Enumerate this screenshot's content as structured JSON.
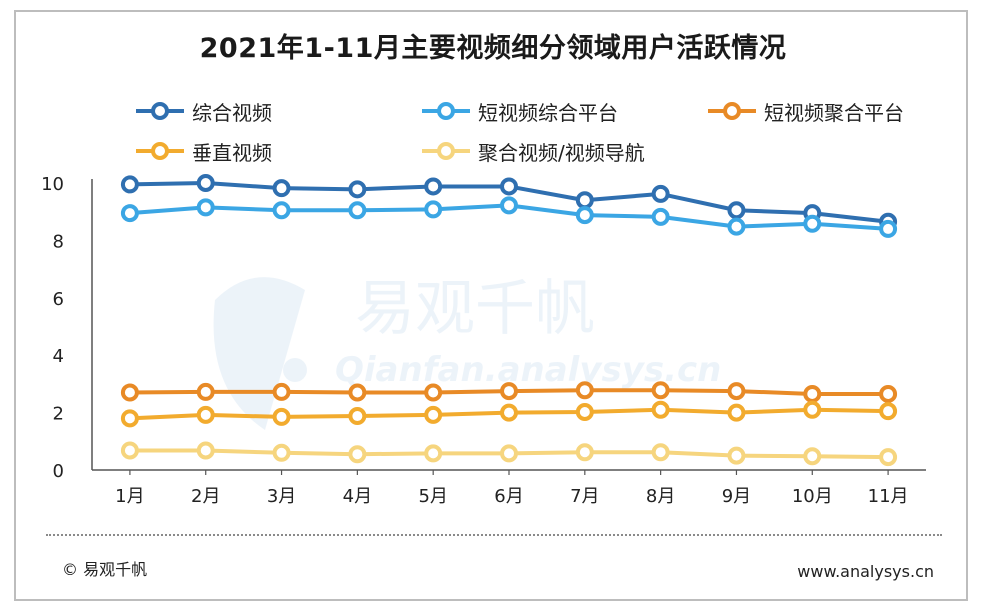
{
  "watermark": {
    "brand_cn": "易观千帆",
    "brand_url": "Qianfan.analysys.cn"
  },
  "footer": {
    "copyright": "© 易观千帆",
    "website": "www.analysys.cn"
  },
  "chart_data": {
    "type": "line",
    "title": "2021年1-11月主要视频细分领域用户活跃情况",
    "xlabel": "",
    "ylabel": "",
    "ylim": [
      0,
      10
    ],
    "yticks": [
      "0",
      "2",
      "4",
      "6",
      "8",
      "10"
    ],
    "categories": [
      "1月",
      "2月",
      "3月",
      "4月",
      "5月",
      "6月",
      "7月",
      "8月",
      "9月",
      "10月",
      "11月"
    ],
    "legend_position": "top",
    "grid": false,
    "series": [
      {
        "name": "综合视频",
        "color": "#2f6fb0",
        "values": [
          9.95,
          10.0,
          9.82,
          9.78,
          9.88,
          9.88,
          9.4,
          9.62,
          9.05,
          8.95,
          8.65
        ]
      },
      {
        "name": "短视频综合平台",
        "color": "#3ba6e4",
        "values": [
          8.95,
          9.15,
          9.05,
          9.05,
          9.08,
          9.22,
          8.88,
          8.82,
          8.48,
          8.58,
          8.4
        ]
      },
      {
        "name": "短视频聚合平台",
        "color": "#e88a26",
        "values": [
          2.7,
          2.72,
          2.72,
          2.7,
          2.7,
          2.75,
          2.78,
          2.78,
          2.75,
          2.65,
          2.65
        ]
      },
      {
        "name": "垂直视频",
        "color": "#f2ab2e",
        "values": [
          1.8,
          1.92,
          1.85,
          1.88,
          1.92,
          2.0,
          2.02,
          2.1,
          2.0,
          2.1,
          2.05
        ]
      },
      {
        "name": "聚合视频/视频导航",
        "color": "#f6d57e",
        "values": [
          0.68,
          0.68,
          0.6,
          0.55,
          0.58,
          0.58,
          0.62,
          0.62,
          0.5,
          0.48,
          0.45
        ]
      }
    ]
  }
}
